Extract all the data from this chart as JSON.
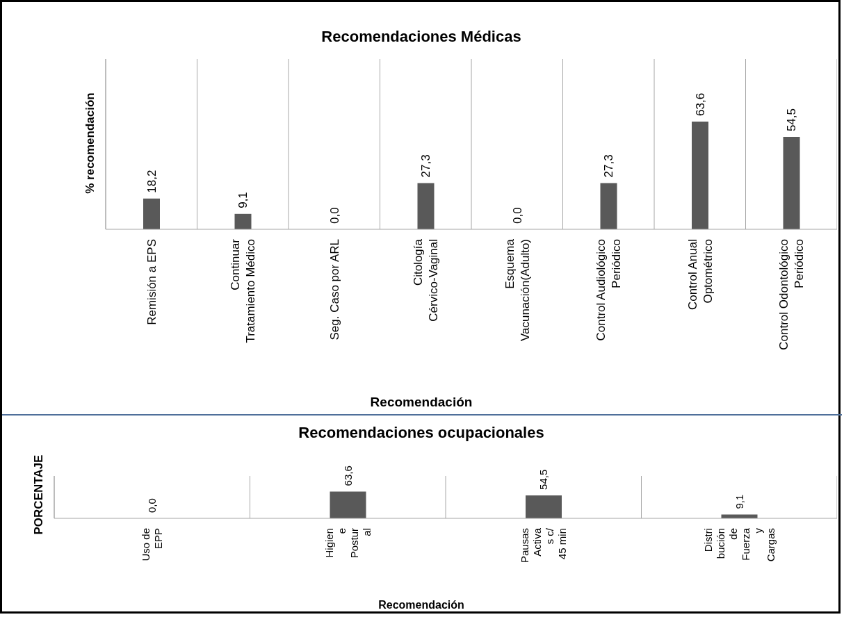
{
  "chart_data": [
    {
      "type": "bar",
      "title": "Recomendaciones Médicas",
      "xlabel": "Recomendación",
      "ylabel": "% recomendación",
      "categories": [
        "Remisión a EPS",
        "Continuar Tratamiento Médico",
        "Seg. Caso por ARL",
        "Citología Cérvico-Vaginal",
        "Esquema Vacunación(Adulto)",
        "Control Audiológico Periódico",
        "Control Anual Optométrico",
        "Control Odontológico Periódico"
      ],
      "values": [
        18.2,
        9.1,
        0,
        27.3,
        0,
        27.3,
        63.6,
        54.5
      ],
      "value_labels": [
        "18,2",
        "9,1",
        "0,0",
        "27,3",
        "0,0",
        "27,3",
        "63,6",
        "54,5"
      ],
      "color": "#595959",
      "grid": "x",
      "tick_labels": "x",
      "legend": false
    },
    {
      "type": "bar",
      "title": "Recomendaciones ocupacionales",
      "xlabel": "Recomendación",
      "ylabel": "PORCENTAJE",
      "categories": [
        "Uso de EPP",
        "Higiene Postural",
        "Pausas Activas c/ 45 min",
        "Distribución de Fuerza y Cargas"
      ],
      "values": [
        0,
        63.6,
        54.5,
        9.1
      ],
      "value_labels": [
        "0,0",
        "63,6",
        "54,5",
        "9,1"
      ],
      "color": "#595959",
      "grid": "x",
      "tick_labels": "x",
      "legend": false
    }
  ]
}
